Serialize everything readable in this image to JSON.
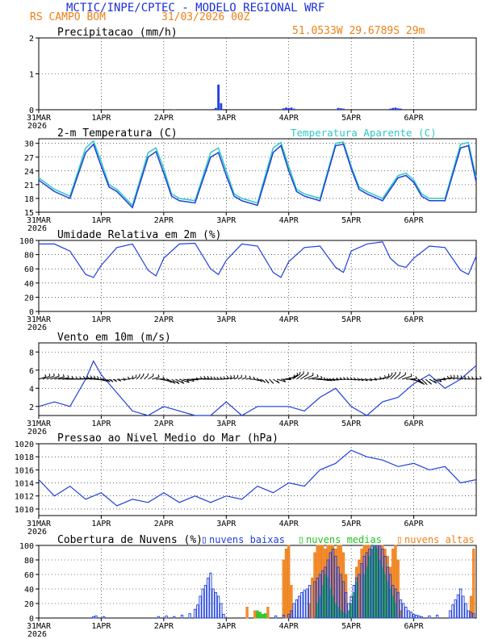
{
  "header": {
    "title": "MCTIC/INPE/CPTEC - MODELO REGIONAL WRF",
    "station": "RS CAMPO BOM",
    "run": "31/03/2026 00Z",
    "location": "51.0533W 29.6789S 29m"
  },
  "x_axis": {
    "day_labels": [
      "31MAR",
      "1APR",
      "2APR",
      "3APR",
      "4APR",
      "5APR",
      "6APR"
    ],
    "year_label": "2026",
    "hours_total": 168
  },
  "colors": {
    "title": "#1a2fd6",
    "accent": "#f07f16",
    "cyan": "#2ec9c4",
    "blue": "#1f3fdb",
    "green": "#22c322",
    "black": "#000000"
  },
  "chart_data": [
    {
      "type": "bar",
      "id": "precip",
      "title": "Precipitacao (mm/h)",
      "ylim": [
        0,
        2
      ],
      "yticks": [
        0,
        1,
        2
      ],
      "x_hours": [
        21,
        52,
        67,
        68,
        69,
        70,
        71,
        94,
        95,
        96,
        97,
        98,
        115,
        116,
        117,
        135,
        136,
        137,
        138,
        139
      ],
      "values": [
        0.01,
        0.01,
        0.02,
        0.05,
        0.7,
        0.18,
        0.02,
        0.04,
        0.06,
        0.05,
        0.06,
        0.03,
        0.05,
        0.04,
        0.03,
        0.03,
        0.05,
        0.06,
        0.04,
        0.03
      ]
    },
    {
      "type": "line",
      "id": "temp",
      "title": "2-m Temperatura (C)",
      "legend": "Temperatura Aparente (C)",
      "ylim": [
        15,
        31
      ],
      "yticks": [
        15,
        18,
        21,
        24,
        27,
        30
      ],
      "x_hours": [
        0,
        6,
        12,
        18,
        21,
        24,
        27,
        30,
        36,
        42,
        45,
        48,
        51,
        54,
        60,
        66,
        69,
        72,
        75,
        78,
        84,
        90,
        93,
        96,
        99,
        102,
        108,
        114,
        117,
        120,
        123,
        126,
        132,
        138,
        141,
        144,
        147,
        150,
        156,
        162,
        165,
        168
      ],
      "series": [
        {
          "name": "Temperatura",
          "values": [
            22,
            19.5,
            18,
            28,
            29.8,
            25,
            20.5,
            19.5,
            16,
            27,
            28.2,
            23.5,
            18.5,
            17.5,
            17,
            27,
            28,
            23,
            18.5,
            17.5,
            16.5,
            28,
            29.5,
            24,
            19.5,
            18.5,
            17.5,
            29.5,
            29.8,
            24.5,
            20,
            19,
            17.5,
            22.5,
            23,
            21.5,
            18.5,
            17.5,
            17.5,
            29,
            29.5,
            21.5
          ]
        },
        {
          "name": "Temperatura Aparente",
          "values": [
            22.5,
            20,
            18.5,
            29,
            30.5,
            26,
            21,
            20,
            16.5,
            28,
            29,
            24.5,
            19,
            18,
            17.5,
            28,
            29,
            24,
            19,
            18,
            17,
            29,
            30.2,
            25,
            20,
            19,
            18,
            30,
            30.3,
            25,
            20.5,
            19.5,
            18,
            23,
            23.5,
            22,
            19,
            18,
            18,
            29.8,
            30.2,
            22.5
          ]
        }
      ]
    },
    {
      "type": "line",
      "id": "rh",
      "title": "Umidade Relativa em 2m (%)",
      "ylim": [
        0,
        100
      ],
      "yticks": [
        0,
        20,
        40,
        60,
        80,
        100
      ],
      "x_hours": [
        0,
        6,
        12,
        18,
        21,
        24,
        30,
        36,
        42,
        45,
        48,
        54,
        60,
        66,
        69,
        72,
        78,
        84,
        90,
        93,
        96,
        102,
        108,
        114,
        117,
        120,
        126,
        132,
        135,
        138,
        141,
        144,
        150,
        156,
        162,
        165,
        168
      ],
      "series": [
        {
          "name": "Umidade",
          "values": [
            95,
            95,
            85,
            52,
            48,
            65,
            90,
            95,
            58,
            50,
            75,
            95,
            96,
            60,
            52,
            72,
            95,
            92,
            55,
            48,
            70,
            90,
            92,
            62,
            55,
            85,
            95,
            98,
            75,
            65,
            62,
            75,
            92,
            90,
            58,
            52,
            78
          ]
        }
      ]
    },
    {
      "type": "line",
      "id": "wind",
      "title": "Vento em 10m (m/s)",
      "ylim": [
        1,
        9
      ],
      "yticks": [
        2,
        4,
        6,
        8
      ],
      "note": "direction barbs drawn along y=5",
      "x_hours": [
        0,
        6,
        12,
        18,
        21,
        24,
        30,
        36,
        42,
        48,
        54,
        60,
        66,
        72,
        78,
        84,
        90,
        96,
        102,
        108,
        114,
        120,
        126,
        132,
        138,
        144,
        150,
        156,
        162,
        168
      ],
      "series": [
        {
          "name": "Velocidade",
          "values": [
            2,
            2.5,
            2,
            5,
            7,
            5.5,
            3.5,
            1.5,
            1,
            2,
            1.5,
            1,
            1,
            2.5,
            1,
            2,
            2,
            2,
            1.5,
            3,
            4,
            2,
            0.8,
            2.5,
            3,
            4.5,
            5.5,
            4,
            5,
            6.5
          ]
        }
      ]
    },
    {
      "type": "line",
      "id": "pressure",
      "title": "Pressao ao Nivel Medio do Mar (hPa)",
      "ylim": [
        1009,
        1020
      ],
      "yticks": [
        1010,
        1012,
        1014,
        1016,
        1018,
        1020
      ],
      "x_hours": [
        0,
        6,
        12,
        18,
        24,
        30,
        36,
        42,
        48,
        54,
        60,
        66,
        72,
        78,
        84,
        90,
        96,
        102,
        108,
        114,
        120,
        126,
        132,
        138,
        144,
        150,
        156,
        162,
        168
      ],
      "series": [
        {
          "name": "Pressao",
          "values": [
            1014.5,
            1012,
            1013.5,
            1011.5,
            1012.5,
            1010.5,
            1011.5,
            1011,
            1012.5,
            1011,
            1012,
            1011,
            1012,
            1011.5,
            1013.5,
            1012.5,
            1014,
            1013.5,
            1016,
            1017,
            1019,
            1018,
            1017.5,
            1016.5,
            1017,
            1016,
            1016.5,
            1014,
            1014.5
          ]
        }
      ]
    },
    {
      "type": "bar",
      "id": "clouds",
      "title": "Cobertura de Nuvens (%)",
      "legend": [
        "nuvens baixas",
        "nuvens medias",
        "nuvens altas"
      ],
      "ylim": [
        0,
        100
      ],
      "yticks": [
        0,
        20,
        40,
        60,
        80,
        100
      ],
      "series": [
        {
          "name": "nuvens baixas",
          "x_hours": [
            21,
            22,
            25,
            46,
            49,
            52,
            55,
            58,
            60,
            61,
            62,
            63,
            64,
            65,
            66,
            67,
            68,
            69,
            70,
            71,
            91,
            94,
            96,
            97,
            98,
            99,
            100,
            101,
            102,
            103,
            104,
            106,
            107,
            108,
            109,
            110,
            111,
            112,
            113,
            114,
            115,
            116,
            117,
            118,
            119,
            120,
            121,
            122,
            123,
            124,
            125,
            126,
            127,
            128,
            129,
            130,
            131,
            132,
            133,
            134,
            135,
            136,
            137,
            138,
            139,
            140,
            141,
            142,
            143,
            144,
            145,
            146,
            147,
            150,
            153,
            158,
            159,
            160,
            161,
            162,
            163,
            164,
            165,
            166,
            167
          ],
          "values": [
            2,
            3,
            2,
            2,
            3,
            2,
            4,
            6,
            12,
            18,
            30,
            40,
            45,
            55,
            62,
            40,
            35,
            30,
            20,
            5,
            3,
            4,
            5,
            10,
            20,
            25,
            30,
            35,
            38,
            40,
            45,
            50,
            55,
            60,
            65,
            70,
            80,
            90,
            95,
            85,
            70,
            60,
            50,
            35,
            20,
            30,
            45,
            55,
            60,
            75,
            85,
            90,
            95,
            98,
            100,
            100,
            100,
            95,
            85,
            70,
            60,
            45,
            40,
            35,
            25,
            20,
            15,
            10,
            8,
            5,
            4,
            3,
            2,
            3,
            4,
            10,
            18,
            25,
            32,
            40,
            30,
            20,
            10,
            8,
            6
          ]
        },
        {
          "name": "nuvens medias",
          "x_hours": [
            84,
            85,
            86,
            87,
            107,
            108,
            109,
            110,
            111,
            112,
            113,
            114,
            115,
            116,
            117,
            118,
            119,
            120,
            121,
            122,
            125,
            126,
            127,
            128,
            129,
            130,
            131,
            132,
            133,
            134,
            135,
            136,
            137
          ],
          "values": [
            10,
            8,
            5,
            6,
            20,
            30,
            45,
            60,
            55,
            40,
            30,
            20,
            15,
            10,
            8,
            5,
            10,
            20,
            35,
            50,
            60,
            70,
            85,
            95,
            100,
            95,
            80,
            70,
            60,
            50,
            40,
            30,
            20
          ]
        },
        {
          "name": "nuvens altas",
          "x_hours": [
            80,
            83,
            84,
            88,
            94,
            95,
            96,
            97,
            104,
            105,
            106,
            107,
            108,
            109,
            110,
            111,
            112,
            113,
            114,
            115,
            116,
            117,
            118,
            121,
            122,
            123,
            124,
            125,
            126,
            127,
            128,
            129,
            130,
            131,
            132,
            133,
            134,
            135,
            136,
            137,
            138,
            139,
            166,
            167
          ],
          "values": [
            15,
            10,
            5,
            15,
            80,
            95,
            100,
            45,
            20,
            55,
            90,
            100,
            100,
            100,
            95,
            100,
            100,
            100,
            95,
            100,
            100,
            90,
            60,
            30,
            70,
            80,
            95,
            100,
            100,
            100,
            95,
            100,
            100,
            100,
            100,
            95,
            85,
            70,
            95,
            100,
            80,
            10,
            30,
            95
          ]
        }
      ]
    }
  ]
}
